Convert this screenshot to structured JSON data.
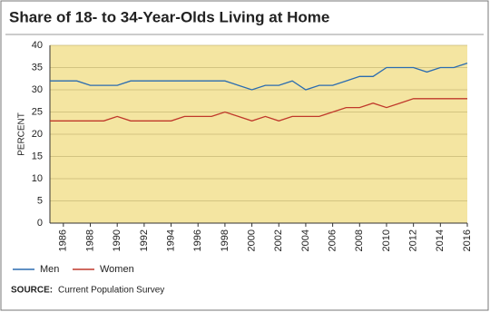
{
  "chart_data": {
    "type": "line",
    "title": "Share of 18- to 34-Year-Olds Living at Home",
    "ylabel": "PERCENT",
    "source_label": "SOURCE:",
    "source": "Current Population Survey",
    "x": [
      1985,
      1986,
      1987,
      1988,
      1989,
      1990,
      1991,
      1992,
      1993,
      1994,
      1995,
      1996,
      1997,
      1998,
      1999,
      2000,
      2001,
      2002,
      2003,
      2004,
      2005,
      2006,
      2007,
      2008,
      2009,
      2010,
      2011,
      2012,
      2013,
      2014,
      2015,
      2016
    ],
    "series": [
      {
        "name": "Men",
        "color": "#2b6cb0",
        "values": [
          32,
          32,
          32,
          31,
          31,
          31,
          32,
          32,
          32,
          32,
          32,
          32,
          32,
          32,
          31,
          30,
          31,
          31,
          32,
          30,
          31,
          31,
          32,
          33,
          33,
          35,
          35,
          35,
          34,
          35,
          35,
          36
        ]
      },
      {
        "name": "Women",
        "color": "#c0392b",
        "values": [
          23,
          23,
          23,
          23,
          23,
          24,
          23,
          23,
          23,
          23,
          24,
          24,
          24,
          25,
          24,
          23,
          24,
          23,
          24,
          24,
          24,
          25,
          26,
          26,
          27,
          26,
          27,
          28,
          28,
          28,
          28,
          28
        ]
      }
    ],
    "xlim": [
      1985,
      2016
    ],
    "xticks": [
      1986,
      1988,
      1990,
      1992,
      1994,
      1996,
      1998,
      2000,
      2002,
      2004,
      2006,
      2008,
      2010,
      2012,
      2014,
      2016
    ],
    "ylim": [
      0,
      40
    ],
    "yticks": [
      0,
      5,
      10,
      15,
      20,
      25,
      30,
      35,
      40
    ],
    "grid": true,
    "plot_color": "#f4e5a1"
  }
}
